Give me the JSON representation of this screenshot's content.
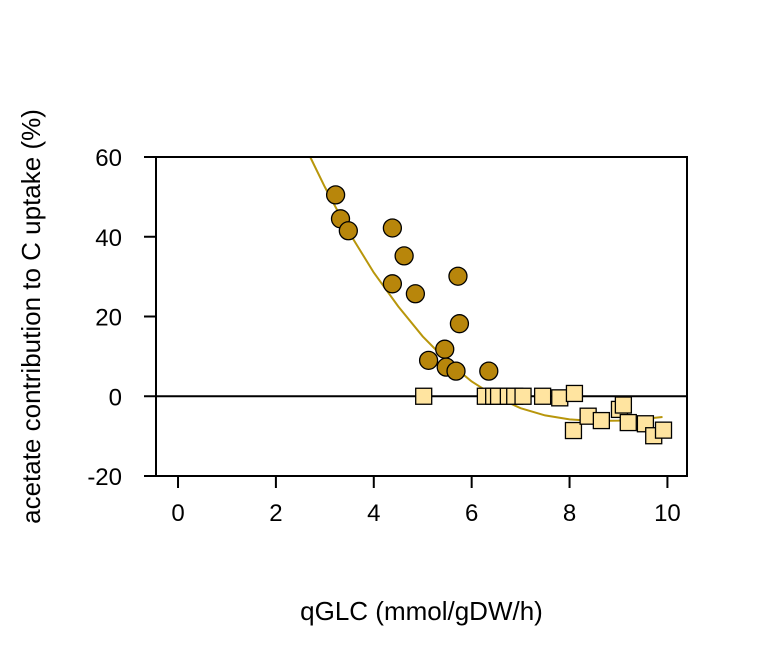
{
  "chart_data": {
    "type": "scatter",
    "xlabel": "qGLC (mmol/gDW/h)",
    "ylabel": "acetate contribution to C uptake (%)",
    "xlim": [
      -0.45,
      10.4
    ],
    "ylim": [
      -20,
      60
    ],
    "xticks": [
      "0",
      "2",
      "4",
      "6",
      "8",
      "10"
    ],
    "yticks": [
      "-20",
      "0",
      "20",
      "40",
      "60"
    ],
    "grid": false,
    "legend": "none",
    "reference_line_y": 0,
    "colors": {
      "circle_fill": "#b8860b",
      "square_fill": "#ffe4a0",
      "fit_line": "#b8960b"
    },
    "series": [
      {
        "marker": "circle",
        "points": [
          [
            3.22,
            50.5
          ],
          [
            3.32,
            44.5
          ],
          [
            3.48,
            41.5
          ],
          [
            4.38,
            42.2
          ],
          [
            4.38,
            28.2
          ],
          [
            4.62,
            35.2
          ],
          [
            4.85,
            25.7
          ],
          [
            5.12,
            9.0
          ],
          [
            5.45,
            11.8
          ],
          [
            5.48,
            7.3
          ],
          [
            5.68,
            6.3
          ],
          [
            5.72,
            30.1
          ],
          [
            5.75,
            18.2
          ],
          [
            6.35,
            6.3
          ]
        ]
      },
      {
        "marker": "square",
        "points": [
          [
            5.02,
            0.0
          ],
          [
            6.28,
            0.0
          ],
          [
            6.45,
            0.0
          ],
          [
            6.55,
            0.0
          ],
          [
            6.75,
            0.0
          ],
          [
            6.88,
            0.0
          ],
          [
            7.05,
            0.0
          ],
          [
            7.45,
            0.0
          ],
          [
            7.8,
            -0.4
          ],
          [
            8.1,
            0.7
          ],
          [
            8.08,
            -8.6
          ],
          [
            8.38,
            -5.0
          ],
          [
            8.65,
            -6.1
          ],
          [
            9.02,
            -3.3
          ],
          [
            9.1,
            -2.2
          ],
          [
            9.2,
            -6.6
          ],
          [
            9.55,
            -6.9
          ],
          [
            9.72,
            -9.9
          ],
          [
            9.92,
            -8.5
          ]
        ]
      }
    ],
    "fit_curve": [
      [
        2.7,
        60.0
      ],
      [
        3.0,
        52.5
      ],
      [
        3.5,
        41.0
      ],
      [
        4.0,
        31.0
      ],
      [
        4.5,
        22.5
      ],
      [
        5.0,
        15.0
      ],
      [
        5.5,
        8.8
      ],
      [
        6.0,
        3.7
      ],
      [
        6.5,
        -0.2
      ],
      [
        7.0,
        -3.0
      ],
      [
        7.5,
        -4.8
      ],
      [
        8.0,
        -5.8
      ],
      [
        8.5,
        -6.2
      ],
      [
        9.0,
        -6.1
      ],
      [
        9.5,
        -5.7
      ],
      [
        9.9,
        -5.2
      ]
    ]
  }
}
